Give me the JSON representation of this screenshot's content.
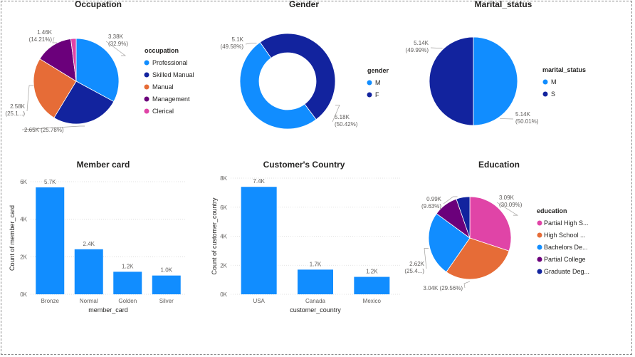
{
  "chart_data": [
    {
      "id": "occupation",
      "type": "pie",
      "title": "Occupation",
      "legend_title": "occupation",
      "legend_placement": "right",
      "categories": [
        "Professional",
        "Skilled Manual",
        "Manual",
        "Management",
        "Clerical"
      ],
      "values": [
        32.9,
        25.78,
        25.1,
        14.21,
        2.01
      ],
      "colors": [
        "#118DFF",
        "#12239E",
        "#E66C37",
        "#6B007B",
        "#E044A7"
      ],
      "data_labels": [
        [
          "3.38K",
          "(32.9%)"
        ],
        [
          "2.65K (25.78%)"
        ],
        [
          "2.58K",
          "(25.1...)"
        ],
        [
          "1.46K",
          "(14.21%)"
        ],
        []
      ]
    },
    {
      "id": "gender",
      "type": "pie",
      "donut": true,
      "title": "Gender",
      "legend_title": "gender",
      "legend_placement": "right",
      "categories": [
        "M",
        "F"
      ],
      "values": [
        50.42,
        49.58
      ],
      "colors": [
        "#118DFF",
        "#12239E"
      ],
      "data_labels": [
        [
          "5.18K",
          "(50.42%)"
        ],
        [
          "5.1K",
          "(49.58%)"
        ]
      ]
    },
    {
      "id": "marital",
      "type": "pie",
      "title": "Marital_status",
      "legend_title": "marital_status",
      "legend_placement": "right",
      "categories": [
        "M",
        "S"
      ],
      "values": [
        50.01,
        49.99
      ],
      "colors": [
        "#118DFF",
        "#12239E"
      ],
      "data_labels": [
        [
          "5.14K",
          "(50.01%)"
        ],
        [
          "5.14K",
          "(49.99%)"
        ]
      ]
    },
    {
      "id": "member_card",
      "type": "bar",
      "title": "Member card",
      "xlabel": "member_card",
      "ylabel": "Count of member_card",
      "categories": [
        "Bronze",
        "Normal",
        "Golden",
        "Silver"
      ],
      "values": [
        5700,
        2400,
        1200,
        1000
      ],
      "data_labels": [
        "5.7K",
        "2.4K",
        "1.2K",
        "1.0K"
      ],
      "ylim": [
        0,
        6000
      ],
      "yticks": [
        0,
        2000,
        4000,
        6000
      ],
      "ytick_labels": [
        "0K",
        "2K",
        "4K",
        "6K"
      ],
      "grid": true,
      "color": "#118DFF"
    },
    {
      "id": "country",
      "type": "bar",
      "title": "Customer's Country",
      "xlabel": "customer_country",
      "ylabel": "Count of customer_country",
      "categories": [
        "USA",
        "Canada",
        "Mexico"
      ],
      "values": [
        7400,
        1700,
        1200
      ],
      "data_labels": [
        "7.4K",
        "1.7K",
        "1.2K"
      ],
      "ylim": [
        0,
        8000
      ],
      "yticks": [
        0,
        2000,
        4000,
        6000,
        8000
      ],
      "ytick_labels": [
        "0K",
        "2K",
        "4K",
        "6K",
        "8K"
      ],
      "grid": true,
      "color": "#118DFF"
    },
    {
      "id": "education",
      "type": "pie",
      "title": "Education",
      "legend_title": "education",
      "legend_placement": "right",
      "categories": [
        "Partial High S...",
        "High School ...",
        "Bachelors De...",
        "Partial College",
        "Graduate Deg..."
      ],
      "values": [
        30.09,
        29.56,
        25.4,
        9.63,
        5.32
      ],
      "colors": [
        "#E044A7",
        "#E66C37",
        "#118DFF",
        "#6B007B",
        "#12239E"
      ],
      "data_labels": [
        [
          "3.09K",
          "(30.09%)"
        ],
        [
          "3.04K (29.56%)"
        ],
        [
          "2.62K",
          "(25.4...)"
        ],
        [
          "0.99K",
          "(9.63%)"
        ],
        []
      ]
    }
  ]
}
